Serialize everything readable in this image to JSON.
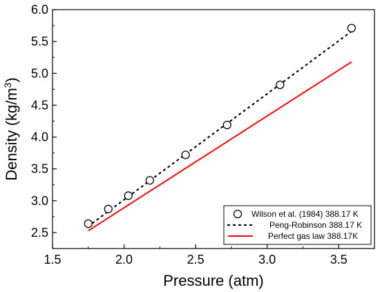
{
  "chart_data": {
    "type": "scatter",
    "xlabel": "Pressure (atm)",
    "ylabel_prefix": "Density (kg/m",
    "ylabel_sup": "3",
    "ylabel_suffix": ")",
    "xlim": [
      1.5,
      3.75
    ],
    "ylim": [
      2.25,
      6.0
    ],
    "xticks": [
      "1.5",
      "2.0",
      "2.5",
      "3.0",
      "3.5"
    ],
    "yticks": [
      "2.5",
      "3.0",
      "3.5",
      "4.0",
      "4.5",
      "5.0",
      "5.5",
      "6.0"
    ],
    "grid": false,
    "legend_position": "bottom-right",
    "series": [
      {
        "name": "Wilson et al. (1984) 388.17 K",
        "style": "open-circle",
        "color": "#000000",
        "x": [
          1.75,
          1.89,
          2.03,
          2.18,
          2.43,
          2.72,
          3.09,
          3.59
        ],
        "y": [
          2.64,
          2.87,
          3.08,
          3.32,
          3.72,
          4.19,
          4.82,
          5.71
        ]
      },
      {
        "name": "Peng-Robinson 388.17 K",
        "style": "dotted-line",
        "color": "#000000",
        "x": [
          1.75,
          3.59
        ],
        "y": [
          2.6,
          5.66
        ]
      },
      {
        "name": "Perfect gas law 388.17K",
        "style": "solid-line",
        "color": "#ff0000",
        "x": [
          1.75,
          3.59
        ],
        "y": [
          2.53,
          5.18
        ]
      }
    ]
  }
}
